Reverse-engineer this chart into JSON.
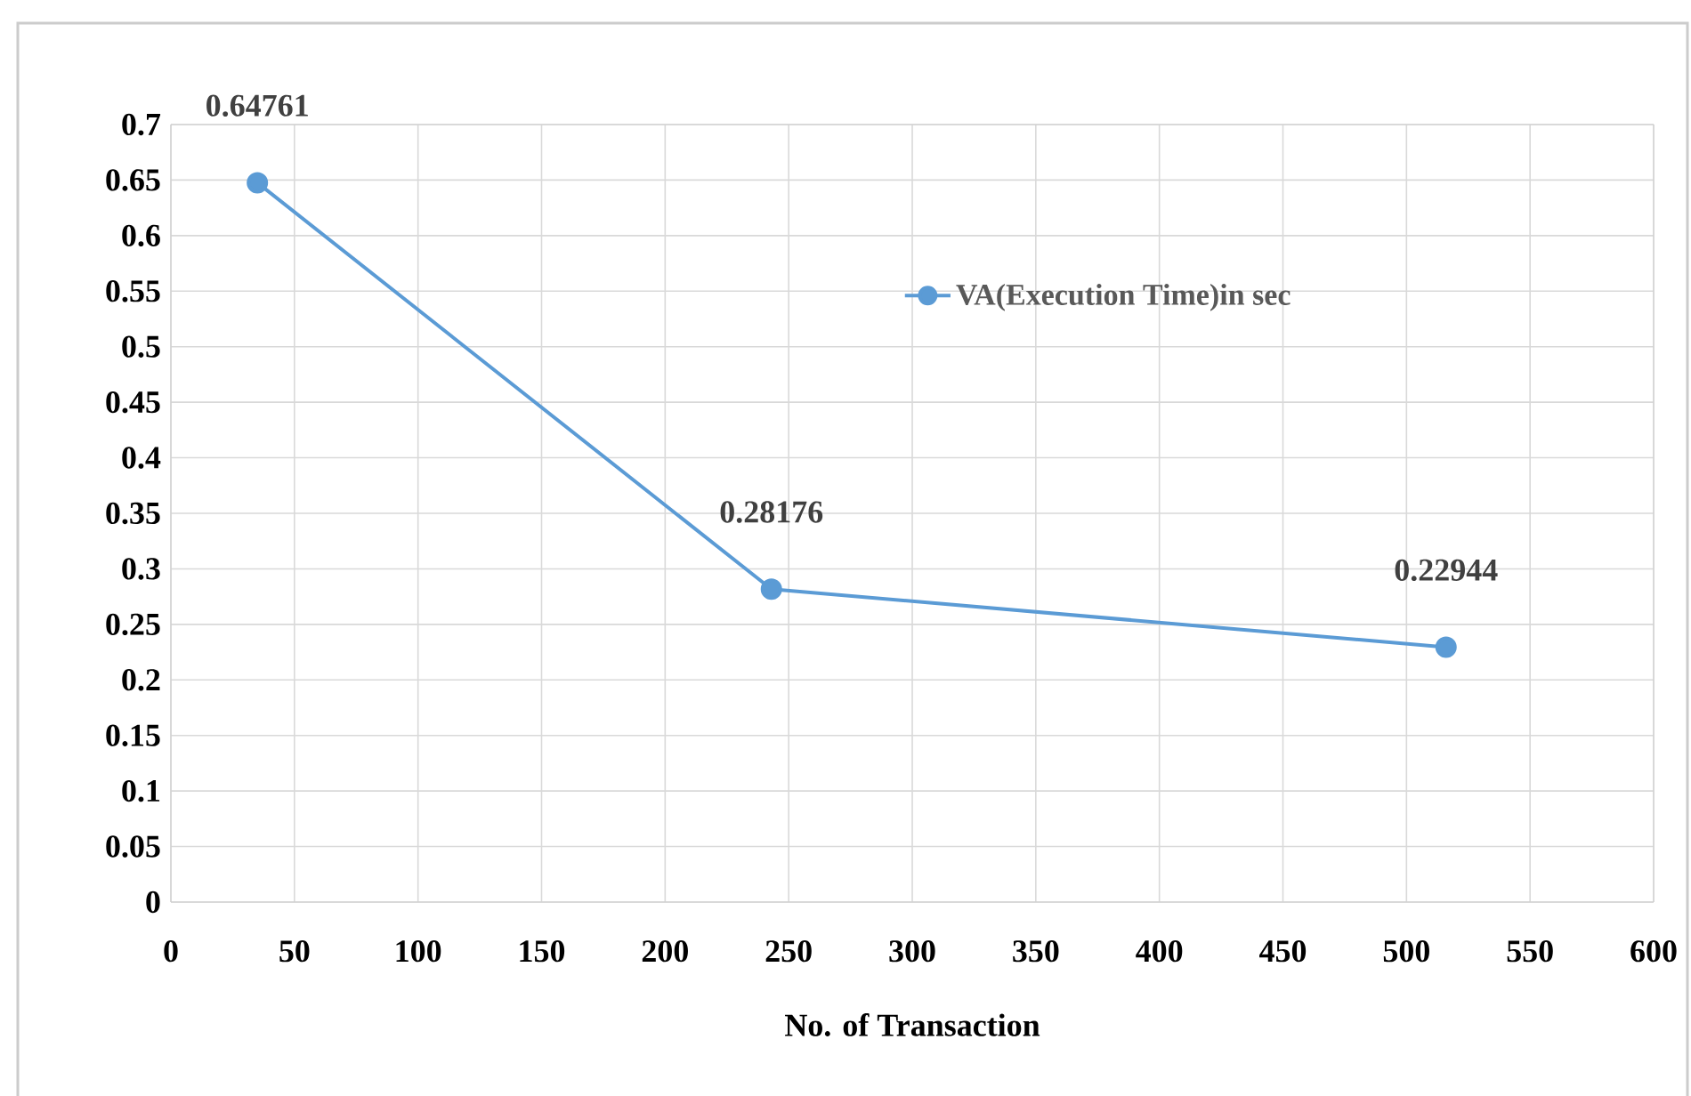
{
  "chart_data": {
    "type": "line",
    "xlabel": "No. of Transaction",
    "series": [
      {
        "name": "VA(Execution Time)in sec",
        "color": "#5b9bd5",
        "x": [
          35,
          243,
          516
        ],
        "values": [
          0.64761,
          0.28176,
          0.22944
        ],
        "value_labels": [
          "0.64761",
          "0.28176",
          "0.22944"
        ]
      }
    ],
    "xlim": [
      0,
      600
    ],
    "xticks": [
      0,
      50,
      100,
      150,
      200,
      250,
      300,
      350,
      400,
      450,
      500,
      550,
      600
    ],
    "ylim": [
      0,
      0.7
    ],
    "yticks": [
      0,
      0.05,
      0.1,
      0.15,
      0.2,
      0.25,
      0.3,
      0.35,
      0.4,
      0.45,
      0.5,
      0.55,
      0.6,
      0.65,
      0.7
    ],
    "grid": true,
    "legend": "top right",
    "marker": "circle",
    "line_style": "solid"
  }
}
